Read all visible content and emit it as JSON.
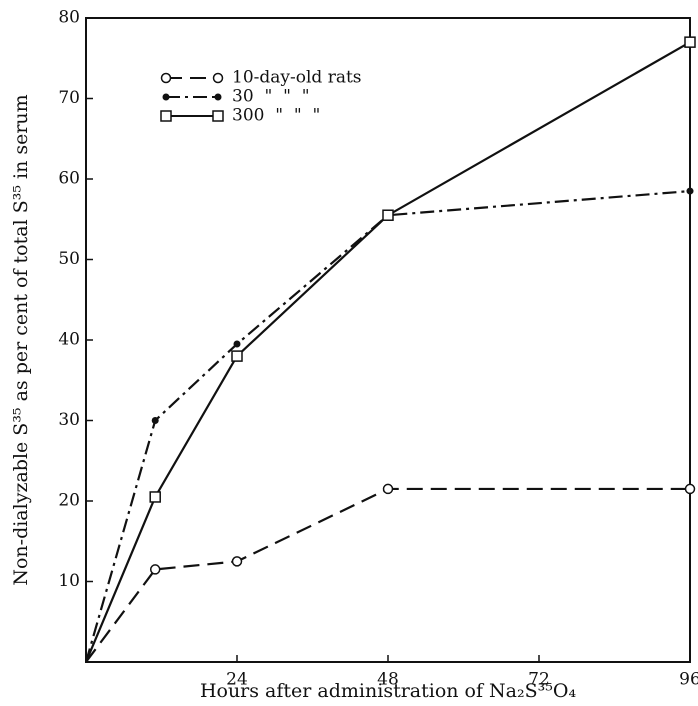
{
  "chart_data": {
    "type": "line",
    "x_label": "Hours after administration of Na₂S³⁵O₄",
    "y_label": "Non-dialyzable S³⁵ as per cent of total S³⁵ in serum",
    "xlim": [
      0,
      96
    ],
    "xticks": [
      24,
      48,
      72,
      96
    ],
    "ylim": [
      0,
      80
    ],
    "yticks": [
      10,
      20,
      30,
      40,
      50,
      60,
      70,
      80
    ],
    "legend": "upper left",
    "series": [
      {
        "name": "10-day-old rats",
        "color": "#111111",
        "marker": "open-circle",
        "dash": "dashed",
        "x": [
          0,
          11,
          24,
          48,
          96
        ],
        "values": [
          0,
          11.5,
          12.5,
          21.5,
          21.5
        ]
      },
      {
        "name": "30  \"  \"  \"",
        "color": "#111111",
        "marker": "filled-circle",
        "dash": "dash-dot",
        "x": [
          0,
          11,
          24,
          48,
          96
        ],
        "values": [
          0,
          30,
          39.5,
          55.5,
          58.5
        ]
      },
      {
        "name": "300  \"  \"  \"",
        "color": "#111111",
        "marker": "open-square",
        "dash": "solid",
        "x": [
          0,
          11,
          24,
          48,
          96
        ],
        "values": [
          0,
          20.5,
          38,
          55.5,
          77
        ]
      }
    ]
  }
}
